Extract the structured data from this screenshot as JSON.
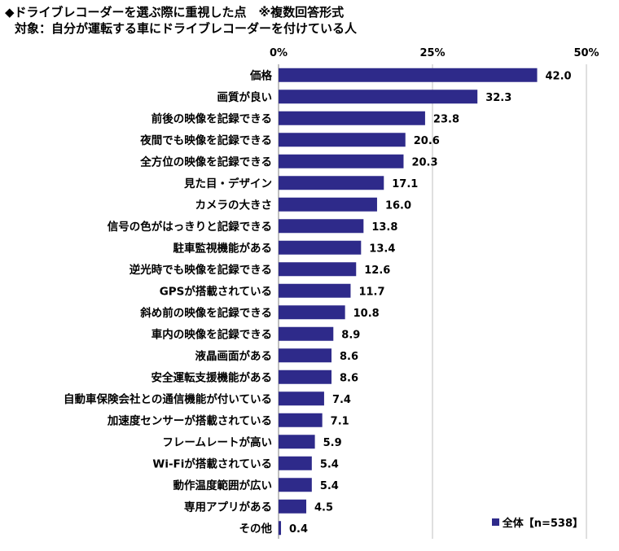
{
  "title_line1": "◆ドライブレコーダーを選ぶ際に重視した点　※複数回答形式",
  "title_line2": "対象：自分が運転する車にドライブレコーダーを付けている人",
  "colors": {
    "bar": "#2e2a8a",
    "grid": "#bfbfbf"
  },
  "chart_data": {
    "type": "bar",
    "orientation": "horizontal",
    "xlim": [
      0,
      50
    ],
    "tick_values": [
      0,
      25,
      50
    ],
    "tick_labels": [
      "0%",
      "25%",
      "50%"
    ],
    "grid": true,
    "legend_position": "bottom-right",
    "categories": [
      "価格",
      "画質が良い",
      "前後の映像を記録できる",
      "夜間でも映像を記録できる",
      "全方位の映像を記録できる",
      "見た目・デザイン",
      "カメラの大きさ",
      "信号の色がはっきりと記録できる",
      "駐車監視機能がある",
      "逆光時でも映像を記録できる",
      "GPSが搭載されている",
      "斜め前の映像を記録できる",
      "車内の映像を記録できる",
      "液晶画面がある",
      "安全運転支援機能がある",
      "自動車保険会社との通信機能が付いている",
      "加速度センサーが搭載されている",
      "フレームレートが高い",
      "Wi-Fiが搭載されている",
      "動作温度範囲が広い",
      "専用アプリがある",
      "その他"
    ],
    "series": [
      {
        "name": "全体【n=538】",
        "values": [
          42.0,
          32.3,
          23.8,
          20.6,
          20.3,
          17.1,
          16.0,
          13.8,
          13.4,
          12.6,
          11.7,
          10.8,
          8.9,
          8.6,
          8.6,
          7.4,
          7.1,
          5.9,
          5.4,
          5.4,
          4.5,
          0.4
        ],
        "labels": [
          "42.0",
          "32.3",
          "23.8",
          "20.6",
          "20.3",
          "17.1",
          "16.0",
          "13.8",
          "13.4",
          "12.6",
          "11.7",
          "10.8",
          "8.9",
          "8.6",
          "8.6",
          "7.4",
          "7.1",
          "5.9",
          "5.4",
          "5.4",
          "4.5",
          "0.4"
        ]
      }
    ]
  }
}
